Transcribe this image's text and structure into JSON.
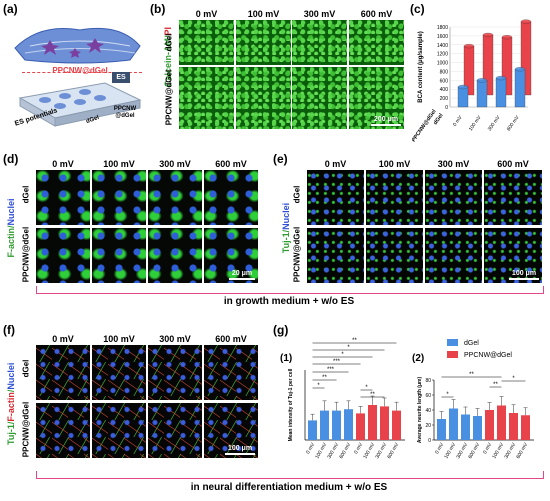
{
  "panels": {
    "a": {
      "label": "(a)",
      "top_label": "PPCNW@dGel",
      "es_box": "ES",
      "es_potentials": "ES potentials",
      "dgel": "dGel",
      "ppcnw": "PPCNW @dGel"
    },
    "b": {
      "label": "(b)",
      "columns": [
        "0 mV",
        "100 mV",
        "300 mV",
        "600 mV"
      ],
      "rows": [
        "dGel",
        "PPCNW@dGel"
      ],
      "stain_main": "Calcein-AM",
      "stain_sep": "/",
      "stain_alt": "PI",
      "scalebar": "200 μm"
    },
    "c": {
      "label": "(c)"
    },
    "d": {
      "label": "(d)",
      "columns": [
        "0 mV",
        "100 mV",
        "300 mV",
        "600 mV"
      ],
      "rows": [
        "dGel",
        "PPCNW@dGel"
      ],
      "stain_main": "F-actin",
      "stain_sep": "/",
      "stain_alt": "Nuclei",
      "scalebar": "20 μm"
    },
    "e": {
      "label": "(e)",
      "columns": [
        "0 mV",
        "100 mV",
        "300 mV",
        "600 mV"
      ],
      "rows": [
        "dGel",
        "PPCNW@dGel"
      ],
      "stain_main": "Tuj-1",
      "stain_sep": "/",
      "stain_alt": "Nuclei",
      "scalebar": "100 μm"
    },
    "growth_caption": "in growth medium + w/o ES",
    "f": {
      "label": "(f)",
      "columns": [
        "0 mV",
        "100 mV",
        "300 mV",
        "600 mV"
      ],
      "rows": [
        "dGel",
        "PPCNW@dGel"
      ],
      "stain_a": "Tuj-1",
      "stain_b": "F-actin",
      "stain_c": "Nuclei",
      "sep": "/",
      "scalebar": "100 μm"
    },
    "g": {
      "label": "(g)",
      "sub1": "(1)",
      "sub2": "(2)"
    },
    "neural_caption": "in neural differentiation medium + w/o ES"
  },
  "colors": {
    "dgel": "#4a90e2",
    "ppcnw": "#e8434a",
    "bracket": "#e2478a",
    "green_text": "#2e9b2e",
    "red_text": "#d8262d",
    "blue_text": "#2f4fd8"
  },
  "chart_data": [
    {
      "type": "bar",
      "panel": "c",
      "ylabel": "BCA content (μg/sample)",
      "categories": [
        "0 mV",
        "100 mV",
        "300 mV",
        "600 mV"
      ],
      "series": [
        {
          "name": "PPCNW@dGel",
          "values": [
            1100,
            1350,
            1300,
            1650
          ]
        },
        {
          "name": "dGel",
          "values": [
            450,
            600,
            650,
            850
          ]
        }
      ],
      "yticks": [
        0,
        200,
        400,
        600,
        800,
        1000,
        1200,
        1400,
        1600,
        1800
      ],
      "ylim": [
        0,
        1800
      ],
      "depth_labels": [
        "PPCNW@dGel",
        "dGel"
      ]
    },
    {
      "type": "bar",
      "panel": "g1",
      "ylabel": "Mean intensity of Tuj-1 per cell",
      "categories": [
        "0 mV",
        "100 mV",
        "300 mV",
        "600 mV",
        "0 mV",
        "100 mV",
        "300 mV",
        "600 mV"
      ],
      "series": [
        {
          "name": "dGel",
          "values": [
            70,
            105,
            105,
            110,
            null,
            null,
            null,
            null
          ]
        },
        {
          "name": "PPCNW@dGel",
          "values": [
            null,
            null,
            null,
            null,
            95,
            125,
            120,
            105
          ]
        }
      ],
      "errors": [
        22,
        35,
        30,
        30,
        25,
        32,
        30,
        30
      ],
      "significance": [
        "**",
        "*",
        "*",
        "***",
        "***",
        "**",
        "*",
        "*",
        "**"
      ],
      "ylim": [
        0,
        250
      ]
    },
    {
      "type": "bar",
      "panel": "g2",
      "ylabel": "Average neurite length (μm)",
      "categories": [
        "0 mV",
        "100 mV",
        "300 mV",
        "600 mV",
        "0 mV",
        "100 mV",
        "300 mV",
        "600 mV"
      ],
      "legend": [
        "dGel",
        "PPCNW@dGel"
      ],
      "series": [
        {
          "name": "dGel",
          "values": [
            28,
            42,
            34,
            32,
            null,
            null,
            null,
            null
          ]
        },
        {
          "name": "PPCNW@dGel",
          "values": [
            null,
            null,
            null,
            null,
            40,
            46,
            36,
            33
          ]
        }
      ],
      "errors": [
        10,
        12,
        10,
        10,
        10,
        12,
        11,
        10
      ],
      "significance": [
        "*",
        "**",
        "**",
        "*"
      ],
      "yticks": [
        0,
        20,
        40,
        60,
        80
      ],
      "ylim": [
        0,
        80
      ]
    }
  ]
}
